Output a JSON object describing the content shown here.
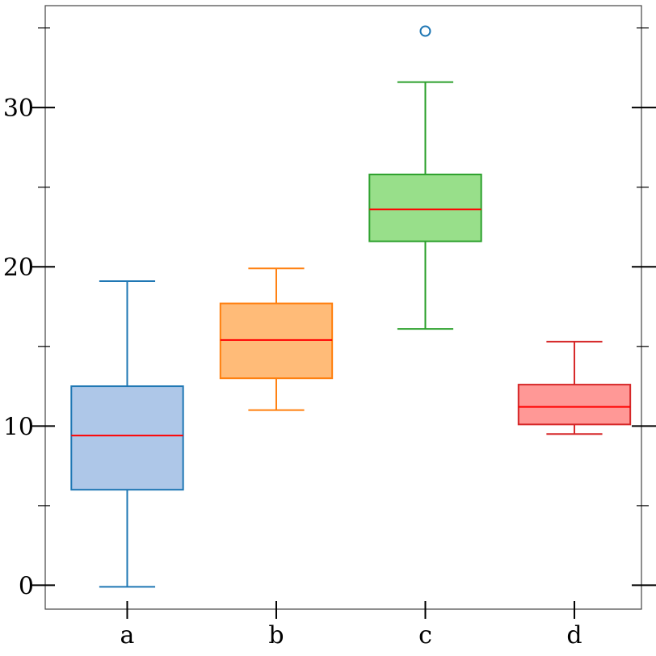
{
  "chart_data": {
    "type": "box",
    "categories": [
      "a",
      "b",
      "c",
      "d"
    ],
    "boxes": [
      {
        "label": "a",
        "whisker_low": -0.1,
        "q1": 6.0,
        "median": 9.4,
        "q3": 12.5,
        "whisker_high": 19.1,
        "outliers": [],
        "fill": "#aec7e8",
        "edge": "#1f77b4"
      },
      {
        "label": "b",
        "whisker_low": 11.0,
        "q1": 13.0,
        "median": 15.4,
        "q3": 17.7,
        "whisker_high": 19.9,
        "outliers": [],
        "fill": "#ffbb78",
        "edge": "#ff7f0e"
      },
      {
        "label": "c",
        "whisker_low": 16.1,
        "q1": 21.6,
        "median": 23.6,
        "q3": 25.8,
        "whisker_high": 31.6,
        "outliers": [
          34.8
        ],
        "fill": "#98df8a",
        "edge": "#2ca02c"
      },
      {
        "label": "d",
        "whisker_low": 9.5,
        "q1": 10.1,
        "median": 11.2,
        "q3": 12.6,
        "whisker_high": 15.3,
        "outliers": [],
        "fill": "#ff9896",
        "edge": "#d62728"
      }
    ],
    "median_color": "#ff0000",
    "outlier_color": "#1f77b4",
    "ylim": [
      -1.5,
      36.4
    ],
    "yticks": [
      0,
      10,
      20,
      30
    ],
    "yticklabels": [
      "0",
      "10",
      "20",
      "30"
    ],
    "y_minor_ticks": [
      5,
      15,
      25,
      35
    ],
    "title": "",
    "xlabel": "",
    "ylabel": "",
    "grid": false
  }
}
